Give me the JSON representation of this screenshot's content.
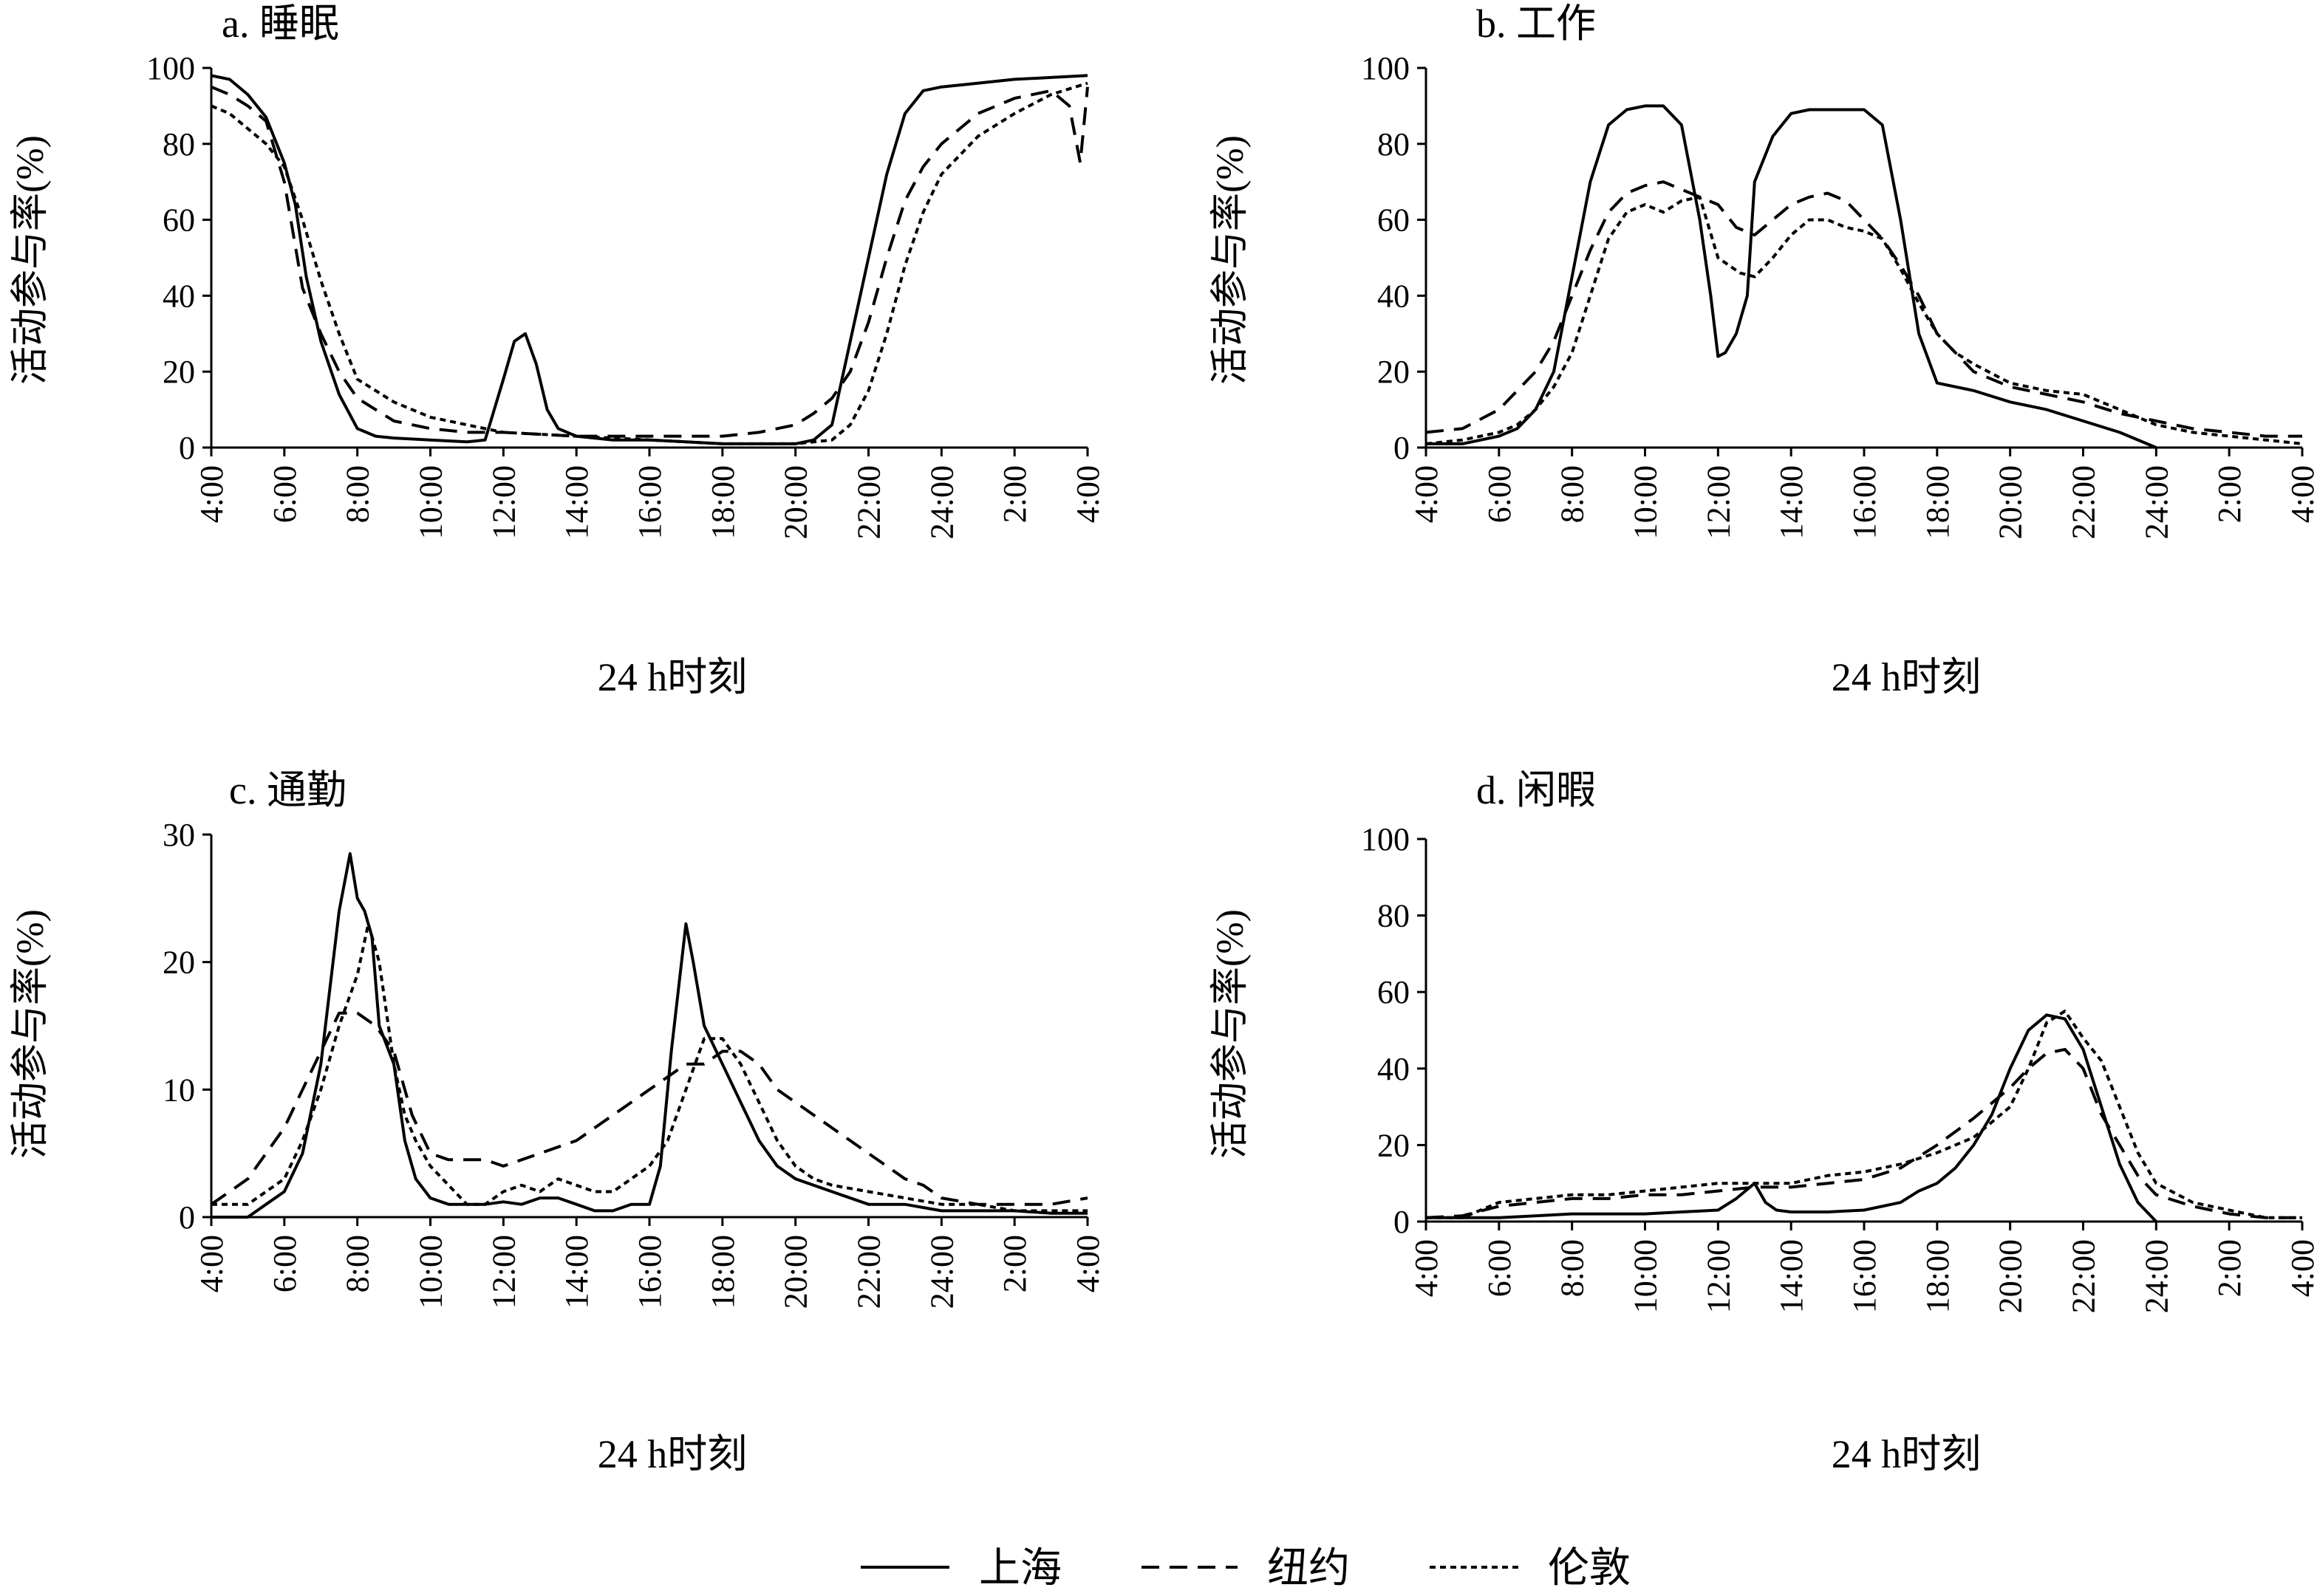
{
  "xlabel": "24 h时刻",
  "ylabel": "活动参与率(%)",
  "series_styles": [
    {
      "name": "上海",
      "dash": "solid"
    },
    {
      "name": "纽约",
      "dash": "dashed"
    },
    {
      "name": "伦敦",
      "dash": "dotted"
    }
  ],
  "legend": {
    "position": "bottom",
    "items": [
      "上海",
      "纽约",
      "伦敦"
    ]
  },
  "chart_data": [
    {
      "type": "line",
      "title": "a. 睡眠",
      "xlabel": "24 h时刻",
      "ylabel": "活动参与率(%)",
      "x_ticks": [
        "4:00",
        "6:00",
        "8:00",
        "10:00",
        "12:00",
        "14:00",
        "16:00",
        "18:00",
        "20:00",
        "22:00",
        "24:00",
        "2:00",
        "4:00"
      ],
      "xlim": [
        4,
        28
      ],
      "ylim": [
        0,
        100
      ],
      "y_ticks": [
        0,
        20,
        40,
        60,
        80,
        100
      ],
      "series": [
        {
          "name": "上海",
          "x": [
            4,
            4.5,
            5,
            5.5,
            6,
            6.3,
            6.6,
            7,
            7.5,
            8,
            8.5,
            9,
            10,
            11,
            11.5,
            12,
            12.3,
            12.6,
            12.9,
            13.2,
            13.5,
            14,
            15,
            16,
            17,
            18,
            19,
            20,
            20.5,
            21,
            21.5,
            22,
            22.5,
            23,
            23.5,
            24,
            25,
            26,
            27,
            28
          ],
          "y": [
            98,
            97,
            93,
            87,
            75,
            64,
            45,
            28,
            14,
            5,
            3,
            2.5,
            2,
            1.5,
            2,
            18,
            28,
            30,
            22,
            10,
            5,
            3,
            2,
            2,
            1.5,
            1,
            1,
            1,
            2,
            6,
            28,
            50,
            72,
            88,
            94,
            95,
            96,
            97,
            97.5,
            98
          ]
        },
        {
          "name": "纽约",
          "x": [
            4,
            4.5,
            5,
            5.5,
            6,
            6.5,
            7,
            7.5,
            8,
            9,
            10,
            11,
            12,
            13,
            14,
            15,
            16,
            17,
            18,
            19,
            20,
            20.5,
            21,
            21.5,
            22,
            22.5,
            23,
            23.5,
            24,
            25,
            26,
            27,
            27.5,
            27.8,
            28
          ],
          "y": [
            95,
            93,
            90,
            86,
            70,
            42,
            30,
            20,
            13,
            7,
            5,
            4,
            4,
            3.5,
            3,
            3,
            3,
            3,
            3,
            4,
            6,
            9,
            13,
            20,
            33,
            50,
            65,
            74,
            80,
            88,
            92,
            94,
            90,
            75,
            95
          ]
        },
        {
          "name": "伦敦",
          "x": [
            4,
            4.5,
            5,
            5.5,
            6,
            6.5,
            7,
            7.5,
            8,
            9,
            10,
            11,
            12,
            13,
            14,
            15,
            16,
            17,
            18,
            19,
            20,
            21,
            21.5,
            22,
            22.5,
            23,
            23.5,
            24,
            25,
            26,
            27,
            28
          ],
          "y": [
            90,
            88,
            84,
            80,
            74,
            60,
            44,
            30,
            18,
            12,
            8,
            6,
            4,
            3.5,
            3,
            2.5,
            2,
            1.5,
            1,
            1,
            1,
            2,
            6,
            15,
            30,
            48,
            62,
            72,
            82,
            88,
            93,
            96
          ]
        }
      ]
    },
    {
      "type": "line",
      "title": "b. 工作",
      "xlabel": "24 h时刻",
      "ylabel": "活动参与率(%)",
      "x_ticks": [
        "4:00",
        "6:00",
        "8:00",
        "10:00",
        "12:00",
        "14:00",
        "16:00",
        "18:00",
        "20:00",
        "22:00",
        "24:00",
        "2:00",
        "4:00"
      ],
      "xlim": [
        4,
        28
      ],
      "ylim": [
        0,
        100
      ],
      "y_ticks": [
        0,
        20,
        40,
        60,
        80,
        100
      ],
      "series": [
        {
          "name": "上海",
          "x": [
            4,
            5,
            6,
            6.5,
            7,
            7.5,
            8,
            8.5,
            9,
            9.5,
            10,
            10.5,
            11,
            11.5,
            11.8,
            12,
            12.2,
            12.5,
            12.8,
            13,
            13.5,
            14,
            14.5,
            15,
            15.5,
            16,
            16.5,
            17,
            17.5,
            18,
            19,
            20,
            21,
            22,
            23,
            24
          ],
          "y": [
            1,
            1,
            3,
            5,
            10,
            20,
            45,
            70,
            85,
            89,
            90,
            90,
            85,
            60,
            40,
            24,
            25,
            30,
            40,
            70,
            82,
            88,
            89,
            89,
            89,
            89,
            85,
            60,
            30,
            17,
            15,
            12,
            10,
            7,
            4,
            0
          ]
        },
        {
          "name": "纽约",
          "x": [
            4,
            5,
            6,
            7,
            7.5,
            8,
            8.5,
            9,
            9.5,
            10,
            10.5,
            11,
            11.5,
            12,
            12.5,
            13,
            13.5,
            14,
            14.5,
            15,
            15.5,
            16,
            16.5,
            17,
            17.5,
            18,
            19,
            20,
            21,
            22,
            23,
            24,
            25,
            26,
            27,
            28
          ],
          "y": [
            4,
            5,
            10,
            20,
            28,
            40,
            52,
            62,
            67,
            69,
            70,
            68,
            66,
            64,
            58,
            56,
            60,
            64,
            66,
            67,
            65,
            60,
            55,
            48,
            40,
            30,
            20,
            16,
            14,
            12,
            9,
            7,
            5,
            4,
            3,
            3
          ]
        },
        {
          "name": "伦敦",
          "x": [
            4,
            5,
            6,
            6.5,
            7,
            7.5,
            8,
            8.5,
            9,
            9.5,
            10,
            10.5,
            11,
            11.5,
            12,
            12.3,
            12.6,
            13,
            13.5,
            14,
            14.5,
            15,
            15.5,
            16,
            16.5,
            17,
            17.5,
            18,
            18.5,
            19,
            20,
            21,
            22,
            23,
            24,
            25,
            26,
            27,
            28
          ],
          "y": [
            1,
            2,
            4,
            6,
            10,
            16,
            25,
            40,
            55,
            62,
            64,
            62,
            65,
            66,
            50,
            48,
            46,
            45,
            50,
            56,
            60,
            60,
            58,
            57,
            55,
            47,
            38,
            30,
            25,
            22,
            17,
            15,
            14,
            10,
            6,
            4,
            3,
            2,
            1
          ]
        }
      ]
    },
    {
      "type": "line",
      "title": "c. 通勤",
      "xlabel": "24 h时刻",
      "ylabel": "活动参与率(%)",
      "x_ticks": [
        "4:00",
        "6:00",
        "8:00",
        "10:00",
        "12:00",
        "14:00",
        "16:00",
        "18:00",
        "20:00",
        "22:00",
        "24:00",
        "2:00",
        "4:00"
      ],
      "xlim": [
        4,
        28
      ],
      "ylim": [
        0,
        30
      ],
      "y_ticks": [
        0,
        10,
        20,
        30
      ],
      "series": [
        {
          "name": "上海",
          "x": [
            4,
            5,
            5.5,
            6,
            6.5,
            7,
            7.5,
            7.8,
            8,
            8.2,
            8.4,
            8.6,
            9,
            9.3,
            9.6,
            10,
            10.5,
            11,
            11.5,
            12,
            12.5,
            13,
            13.5,
            14,
            14.5,
            15,
            15.5,
            16,
            16.3,
            16.6,
            17,
            17.2,
            17.5,
            18,
            18.5,
            19,
            19.5,
            20,
            21,
            22,
            23,
            24,
            25,
            26,
            27,
            28
          ],
          "y": [
            0,
            0,
            1,
            2,
            5,
            12,
            24,
            28.5,
            25,
            24,
            22,
            15,
            12,
            6,
            3,
            1.5,
            1,
            1,
            1,
            1.2,
            1,
            1.5,
            1.5,
            1,
            0.5,
            0.5,
            1,
            1,
            4,
            13,
            23,
            20,
            15,
            12,
            9,
            6,
            4,
            3,
            2,
            1,
            1,
            0.5,
            0.5,
            0.5,
            0.3,
            0.3
          ]
        },
        {
          "name": "纽约",
          "x": [
            4,
            4.5,
            5,
            5.5,
            6,
            6.5,
            7,
            7.5,
            8,
            8.5,
            9,
            9.5,
            10,
            10.5,
            11,
            11.5,
            12,
            12.5,
            13,
            13.5,
            14,
            14.5,
            15,
            15.5,
            16,
            16.5,
            17,
            17.5,
            18,
            18.5,
            19,
            19.5,
            20,
            20.5,
            21,
            21.5,
            22,
            22.5,
            23,
            23.5,
            24,
            25,
            26,
            27,
            28
          ],
          "y": [
            1,
            2,
            3,
            5,
            7,
            10,
            13,
            16,
            16,
            15,
            13,
            8,
            5,
            4.5,
            4.5,
            4.5,
            4,
            4.5,
            5,
            5.5,
            6,
            7,
            8,
            9,
            10,
            11,
            12,
            12,
            13,
            13,
            12,
            10,
            9,
            8,
            7,
            6,
            5,
            4,
            3,
            2.5,
            1.5,
            1,
            1,
            1,
            1.5
          ]
        },
        {
          "name": "伦敦",
          "x": [
            4,
            5,
            5.5,
            6,
            6.5,
            7,
            7.5,
            8,
            8.3,
            8.6,
            9,
            9.3,
            9.6,
            10,
            10.5,
            11,
            11.5,
            12,
            12.5,
            13,
            13.5,
            14,
            14.5,
            15,
            15.5,
            16,
            16.5,
            17,
            17.5,
            18,
            18.5,
            19,
            19.5,
            20,
            20.5,
            21,
            22,
            23,
            24,
            25,
            26,
            27,
            28
          ],
          "y": [
            1,
            1,
            2,
            3,
            6,
            10,
            15,
            19,
            23,
            20,
            12,
            8,
            6,
            4,
            2.5,
            1,
            1,
            2,
            2.5,
            2,
            3,
            2.5,
            2,
            2,
            3,
            4,
            6,
            10,
            14,
            14,
            12,
            9,
            6,
            4,
            3,
            2.5,
            2,
            1.5,
            1,
            1,
            0.5,
            0.5,
            0.5
          ]
        }
      ]
    },
    {
      "type": "line",
      "title": "d. 闲暇",
      "xlabel": "24 h时刻",
      "ylabel": "活动参与率(%)",
      "x_ticks": [
        "4:00",
        "6:00",
        "8:00",
        "10:00",
        "12:00",
        "14:00",
        "16:00",
        "18:00",
        "20:00",
        "22:00",
        "24:00",
        "2:00",
        "4:00"
      ],
      "xlim": [
        4,
        28
      ],
      "ylim": [
        0,
        100
      ],
      "y_ticks": [
        0,
        20,
        40,
        60,
        80,
        100
      ],
      "series": [
        {
          "name": "上海",
          "x": [
            4,
            5,
            6,
            7,
            8,
            9,
            10,
            11,
            12,
            12.5,
            13,
            13.3,
            13.6,
            14,
            15,
            16,
            17,
            17.5,
            18,
            18.5,
            19,
            19.5,
            20,
            20.5,
            21,
            21.5,
            22,
            22.5,
            23,
            23.5,
            24
          ],
          "y": [
            1,
            1,
            1,
            1.5,
            2,
            2,
            2,
            2.5,
            3,
            6,
            10,
            5,
            3,
            2.5,
            2.5,
            3,
            5,
            8,
            10,
            14,
            20,
            28,
            40,
            50,
            54,
            53,
            45,
            30,
            15,
            5,
            0
          ]
        },
        {
          "name": "纽约",
          "x": [
            4,
            5,
            6,
            7,
            8,
            9,
            10,
            11,
            12,
            13,
            14,
            15,
            16,
            17,
            18,
            19,
            20,
            20.5,
            21,
            21.5,
            22,
            22.5,
            23,
            23.5,
            24,
            25,
            26,
            27,
            28
          ],
          "y": [
            1,
            1.5,
            4,
            5,
            6,
            6,
            7,
            7,
            8,
            9,
            9,
            10,
            11,
            14,
            20,
            27,
            35,
            40,
            44,
            45,
            40,
            28,
            20,
            12,
            7,
            4,
            2,
            1,
            1
          ]
        },
        {
          "name": "伦敦",
          "x": [
            4,
            5,
            6,
            7,
            8,
            9,
            10,
            11,
            12,
            13,
            14,
            15,
            16,
            17,
            18,
            19,
            20,
            20.5,
            21,
            21.5,
            22,
            22.5,
            23,
            23.5,
            24,
            25,
            26,
            27,
            28
          ],
          "y": [
            1,
            1,
            5,
            6,
            7,
            7,
            8,
            9,
            10,
            10,
            10,
            12,
            13,
            15,
            18,
            22,
            30,
            40,
            52,
            55,
            48,
            42,
            30,
            18,
            10,
            5,
            3,
            1,
            1
          ]
        }
      ]
    }
  ]
}
